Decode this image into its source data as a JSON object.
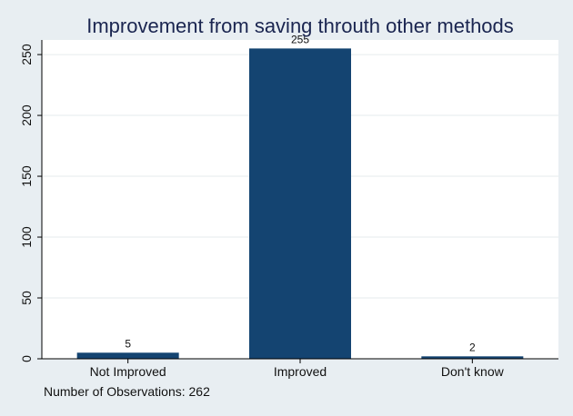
{
  "chart_data": {
    "type": "bar",
    "title": "Improvement from saving throuth other methods",
    "categories": [
      "Not Improved",
      "Improved",
      "Don't know"
    ],
    "values": [
      5,
      255,
      2
    ],
    "data_labels": [
      "5",
      "255",
      "2"
    ],
    "ylim": [
      0,
      262
    ],
    "yticks": [
      0,
      50,
      100,
      150,
      200,
      250
    ],
    "ytick_labels": [
      "0",
      "50",
      "100",
      "150",
      "200",
      "250"
    ],
    "grid": true,
    "bar_color": "#144471",
    "note": "Number of Observations: 262"
  },
  "colors": {
    "background": "#e8eef2",
    "plot_background": "#ffffff",
    "title": "#1a2550",
    "grid": "#e6ebee"
  }
}
